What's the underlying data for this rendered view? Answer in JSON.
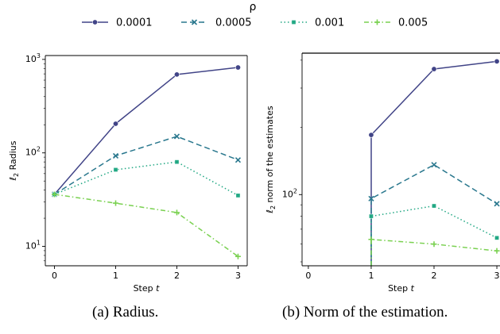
{
  "chart_data": [
    {
      "type": "line",
      "title": "",
      "xlabel": "Step t",
      "ylabel": "ℓ2 Radius",
      "yscale": "log",
      "xlim": [
        -0.15,
        3.15
      ],
      "ylim": [
        6.2,
        1100
      ],
      "xticks": [
        0,
        1,
        2,
        3
      ],
      "yticks": [
        {
          "value": 10,
          "label": "10^1"
        },
        {
          "value": 100,
          "label": "10^2"
        },
        {
          "value": 1000,
          "label": "10^3"
        }
      ],
      "grid": false,
      "legend_title": "ρ",
      "legend_position": "top-center (shared)",
      "series": [
        {
          "name": "0.0001",
          "color": "#414487",
          "dash": "solid",
          "marker": "circle",
          "x": [
            0,
            1,
            2,
            3
          ],
          "y": [
            36,
            205,
            690,
            820
          ]
        },
        {
          "name": "0.0005",
          "color": "#2a788e",
          "dash": "dashed",
          "marker": "x",
          "x": [
            0,
            1,
            2,
            3
          ],
          "y": [
            36,
            93,
            150,
            84
          ]
        },
        {
          "name": "0.001",
          "color": "#22a884",
          "dash": "dotted",
          "marker": "square",
          "x": [
            0,
            1,
            2,
            3
          ],
          "y": [
            36,
            66,
            80,
            35
          ]
        },
        {
          "name": "0.005",
          "color": "#7ad151",
          "dash": "dashdot",
          "marker": "plus",
          "x": [
            0,
            1,
            2,
            3
          ],
          "y": [
            36,
            29,
            23,
            7.8
          ]
        }
      ]
    },
    {
      "type": "line",
      "title": "",
      "xlabel": "Step t",
      "ylabel": "ℓ2 norm of the estimates",
      "yscale": "log",
      "xlim": [
        -0.1,
        3.05
      ],
      "ylim": [
        48,
        430
      ],
      "xticks": [
        0,
        1,
        2,
        3
      ],
      "yticks": [
        {
          "value": 100,
          "label": "10^2"
        }
      ],
      "grid": false,
      "legend_position": "top-center (shared)",
      "series": [
        {
          "name": "0.0001",
          "color": "#414487",
          "dash": "solid",
          "marker": "circle",
          "x": [
            1,
            1,
            2,
            3
          ],
          "y": [
            48,
            185,
            365,
            395
          ]
        },
        {
          "name": "0.0005",
          "color": "#2a788e",
          "dash": "dashed",
          "marker": "x",
          "x": [
            1,
            1,
            2,
            3
          ],
          "y": [
            48,
            96,
            136,
            91
          ]
        },
        {
          "name": "0.001",
          "color": "#22a884",
          "dash": "dotted",
          "marker": "square",
          "x": [
            1,
            1,
            2,
            3
          ],
          "y": [
            48,
            80,
            89,
            64
          ]
        },
        {
          "name": "0.005",
          "color": "#7ad151",
          "dash": "dashdot",
          "marker": "plus",
          "x": [
            1,
            1,
            2,
            3
          ],
          "y": [
            48,
            63,
            60,
            56
          ]
        }
      ]
    }
  ],
  "legend": {
    "title": "ρ",
    "entries": [
      "0.0001",
      "0.0005",
      "0.001",
      "0.005"
    ]
  },
  "captions": {
    "a": "(a) Radius.",
    "b": "(b) Norm of the estimation."
  }
}
